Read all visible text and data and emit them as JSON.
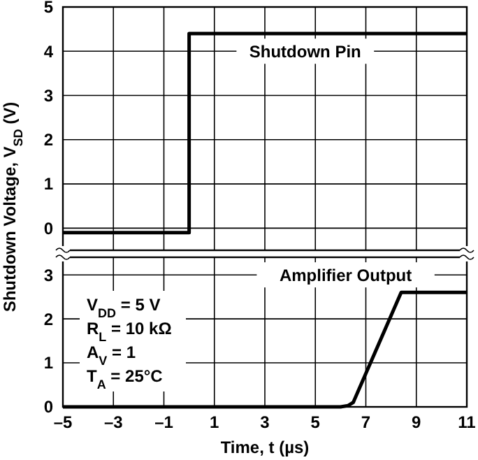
{
  "chart_data": [
    {
      "type": "line",
      "ylabel": "Shutdown Voltage, V$_{SD}$ (V)",
      "xlim": [
        -5,
        11
      ],
      "xticks": [
        -5,
        -3,
        -1,
        1,
        3,
        5,
        7,
        9,
        11
      ],
      "ylim": [
        -0.5,
        5
      ],
      "yticks": [
        0,
        1,
        2,
        3,
        4,
        5
      ],
      "grid": true,
      "tick_labels": "y",
      "line_style": "solid",
      "marker": "none",
      "series": [
        {
          "name": "Shutdown Pin",
          "color": "#000000",
          "x": [
            -5,
            0,
            0,
            11
          ],
          "values": [
            -0.1,
            -0.1,
            4.4,
            4.4
          ]
        }
      ]
    },
    {
      "type": "line",
      "xlabel": "Time, t (µs)",
      "xlim": [
        -5,
        11
      ],
      "xticks": [
        {
          "value": -5,
          "label": "–5"
        },
        {
          "value": -3,
          "label": "–3"
        },
        {
          "value": -1,
          "label": "–1"
        },
        1,
        3,
        5,
        7,
        9,
        11
      ],
      "ylim": [
        0,
        3.4
      ],
      "yticks": [
        0,
        1,
        2,
        3
      ],
      "grid": true,
      "line_style": "solid",
      "marker": "none",
      "annotations": [
        "V$_{DD}$ = 5 V",
        "R$_{L}$ = 10 kΩ",
        "A$_{V}$ = 1",
        "T$_{A}$ = 25°C"
      ],
      "series": [
        {
          "name": "Amplifier Output",
          "color": "#000000",
          "x": [
            -5,
            6,
            6.3,
            6.5,
            8.4,
            11
          ],
          "values": [
            0,
            0,
            0.03,
            0.1,
            2.6,
            2.6
          ]
        }
      ]
    }
  ]
}
